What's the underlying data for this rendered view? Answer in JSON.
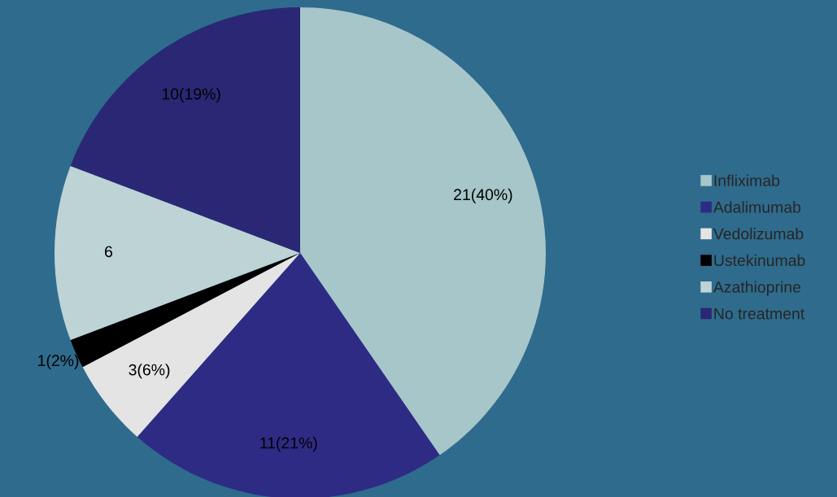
{
  "chart_data": {
    "type": "pie",
    "categories": [
      "Infliximab",
      "Adalimumab",
      "Vedolizumab",
      "Ustekinumab",
      "Azathioprine",
      "No treatment"
    ],
    "values": [
      21,
      11,
      3,
      1,
      6,
      10
    ],
    "colors": [
      "#a6c6c9",
      "#2e2b85",
      "#e4e4e4",
      "#000000",
      "#bdd3d6",
      "#2a2874"
    ],
    "value_labels": [
      "21(40%)",
      "11(21%)",
      "3(6%)",
      "1(2%)",
      "6",
      "10(19%)"
    ],
    "legend": "right"
  }
}
